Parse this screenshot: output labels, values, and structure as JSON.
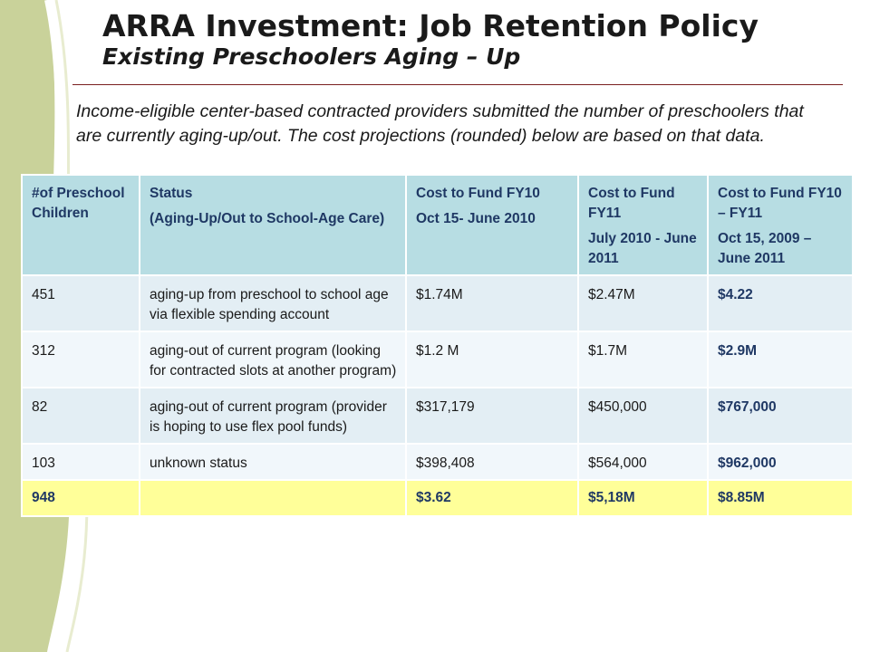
{
  "slide": {
    "title": "ARRA Investment: Job Retention Policy",
    "subtitle": "Existing Preschoolers Aging – Up",
    "intro": "Income-eligible center-based contracted providers submitted the number of preschoolers that are currently aging-up/out. The cost projections (rounded) below are based on that data."
  },
  "table": {
    "headers": [
      {
        "line1": "#of Preschool Children",
        "line2": ""
      },
      {
        "line1": "Status",
        "line2": "(Aging-Up/Out to School-Age Care)"
      },
      {
        "line1": "Cost to Fund FY10",
        "line2": "Oct 15- June 2010"
      },
      {
        "line1": "Cost to Fund FY11",
        "line2": "July 2010 - June 2011"
      },
      {
        "line1": "Cost to Fund FY10 – FY11",
        "line2": "Oct 15, 2009 – June 2011"
      }
    ],
    "rows": [
      {
        "count": "451",
        "status": "aging-up from preschool to school age via flexible spending account",
        "fy10": "$1.74M",
        "fy11": "$2.47M",
        "total": "$4.22"
      },
      {
        "count": "312",
        "status": "aging-out of current program (looking for contracted slots at another program)",
        "fy10": "$1.2 M",
        "fy11": "$1.7M",
        "total": "$2.9M"
      },
      {
        "count": "82",
        "status": "aging-out of current program (provider is hoping to use flex pool funds)",
        "fy10": "$317,179",
        "fy11": "$450,000",
        "total": "$767,000"
      },
      {
        "count": "103",
        "status": "unknown status",
        "fy10": "$398,408",
        "fy11": "$564,000",
        "total": "$962,000"
      }
    ],
    "total_row": {
      "count": "948",
      "status": "",
      "fy10": "$3.62",
      "fy11": "$5,18M",
      "total": "$8.85M"
    }
  },
  "colors": {
    "header_bg": "#b7dde3",
    "row_bg_a": "#e3eef4",
    "row_bg_b": "#f1f7fb",
    "total_bg": "#ffff99",
    "accent_text": "#1f3864",
    "title_rule": "#7a1f1f",
    "left_band": "#c9d29a"
  }
}
